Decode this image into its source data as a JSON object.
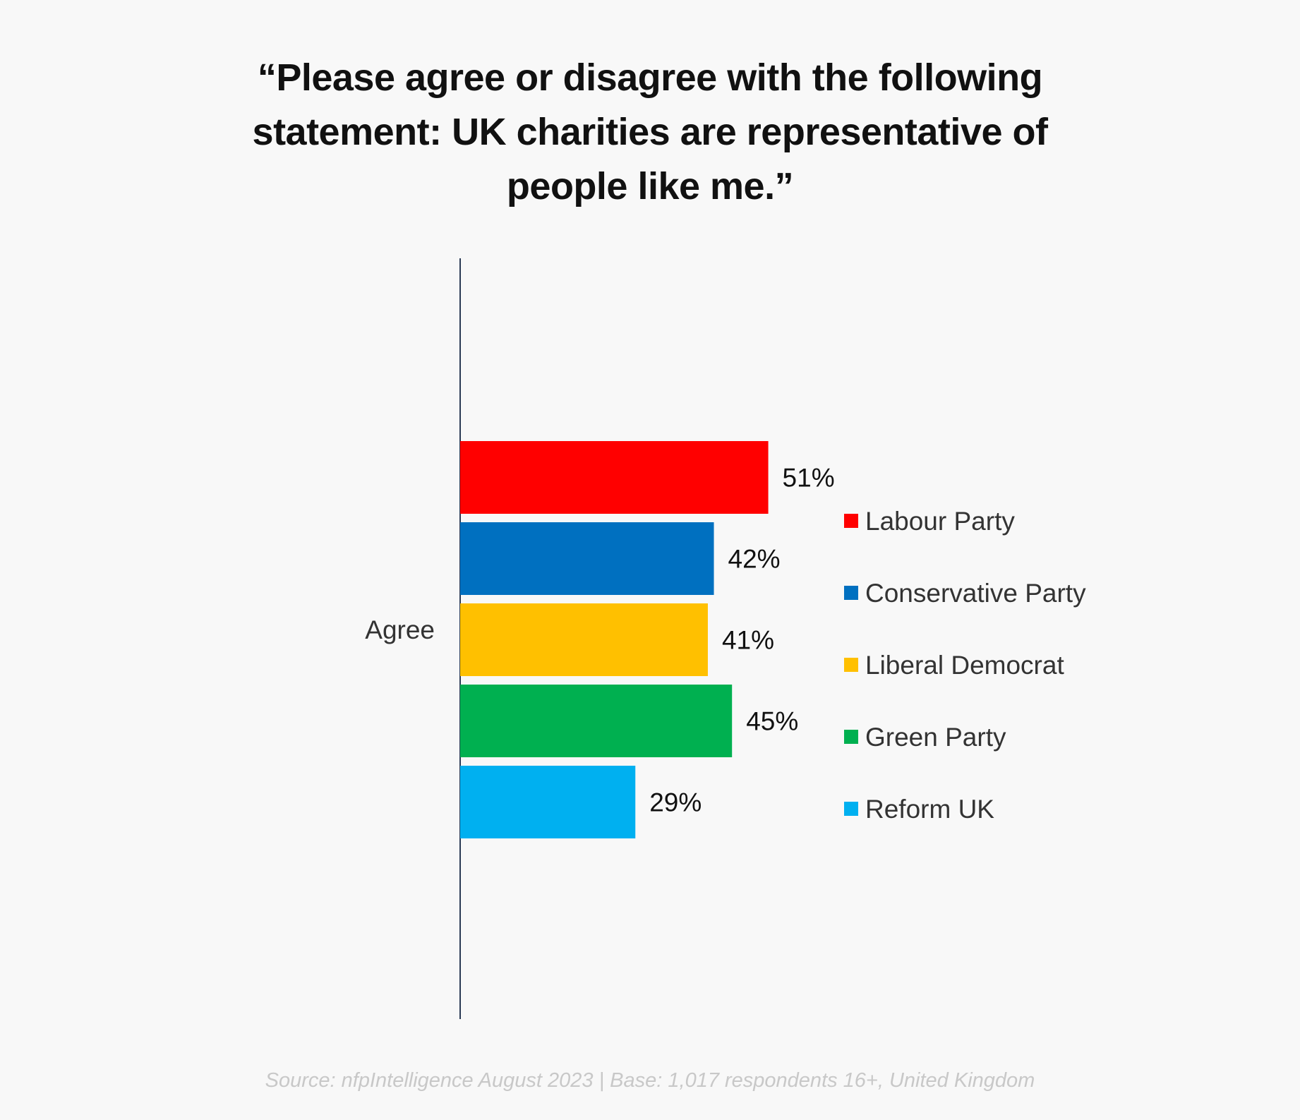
{
  "chart_data": {
    "type": "bar",
    "orientation": "horizontal",
    "title": "“Please agree or disagree with the following statement: UK charities are representative of people like me.”",
    "categories": [
      "Agree"
    ],
    "series": [
      {
        "name": "Labour Party",
        "values": [
          51
        ],
        "color": "#ff0000",
        "label": "51%"
      },
      {
        "name": "Conservative Party",
        "values": [
          42
        ],
        "color": "#0070c0",
        "label": "42%"
      },
      {
        "name": "Liberal Democrat",
        "values": [
          41
        ],
        "color": "#ffc000",
        "label": "41%"
      },
      {
        "name": "Green Party",
        "values": [
          45
        ],
        "color": "#00b050",
        "label": "45%"
      },
      {
        "name": "Reform UK",
        "values": [
          29
        ],
        "color": "#00b0f0",
        "label": "29%"
      }
    ],
    "xlim": [
      0,
      100
    ],
    "grid": false,
    "legend": "right",
    "source": "Source: nfpIntelligence August 2023 | Base: 1,017 respondents 16+, United Kingdom"
  }
}
